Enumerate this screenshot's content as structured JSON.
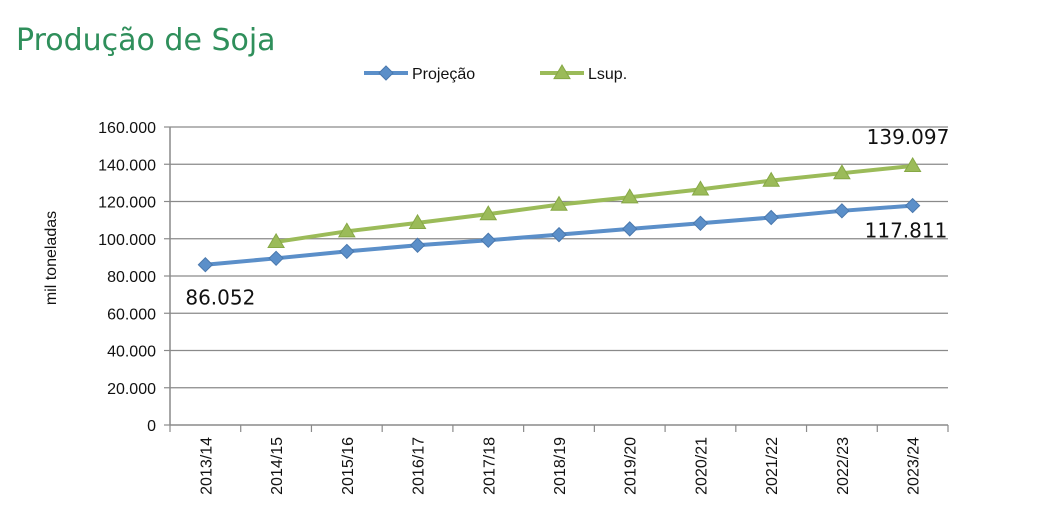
{
  "chart_data": {
    "type": "line",
    "title": "Produção de Soja",
    "ylabel": "mil toneladas",
    "xlabel": "",
    "ylim": [
      0,
      160000
    ],
    "yticks": [
      0,
      20000,
      40000,
      60000,
      80000,
      100000,
      120000,
      140000,
      160000
    ],
    "ytick_labels": [
      "0",
      "20.000",
      "40.000",
      "60.000",
      "80.000",
      "100.000",
      "120.000",
      "140.000",
      "160.000"
    ],
    "categories": [
      "2013/14",
      "2014/15",
      "2015/16",
      "2016/17",
      "2017/18",
      "2018/19",
      "2019/20",
      "2020/21",
      "2021/22",
      "2022/23",
      "2023/24"
    ],
    "grid": "horizontal",
    "legend_position": "top",
    "series": [
      {
        "name": "Projeção",
        "color": "#5b8fc9",
        "marker": "diamond",
        "values": [
          86052,
          89500,
          93200,
          96500,
          99200,
          102200,
          105300,
          108300,
          111400,
          115000,
          117811
        ]
      },
      {
        "name": "Lsup.",
        "color": "#9bbb59",
        "marker": "triangle",
        "values": [
          null,
          98300,
          104000,
          108500,
          113200,
          118300,
          122300,
          126500,
          131200,
          135200,
          139097
        ]
      }
    ],
    "annotations": [
      {
        "text": "86.052",
        "series": 0,
        "index": 0
      },
      {
        "text": "117.811",
        "series": 0,
        "index": 10
      },
      {
        "text": "139.097",
        "series": 1,
        "index": 10
      }
    ]
  }
}
